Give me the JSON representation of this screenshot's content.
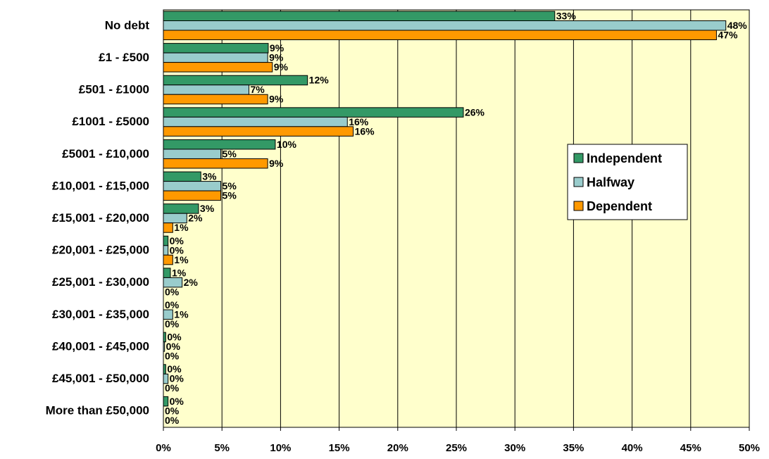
{
  "chart_data": {
    "type": "hbar",
    "categories": [
      "No debt",
      "£1 - £500",
      "£501 - £1000",
      "£1001 - £5000",
      "£5001 - £10,000",
      "£10,001 - £15,000",
      "£15,001 - £20,000",
      "£20,001 - £25,000",
      "£25,001 - £30,000",
      "£30,001 - £35,000",
      "£40,001 - £45,000",
      "£45,001 - £50,000",
      "More than £50,000"
    ],
    "series": [
      {
        "name": "Independent",
        "color": "#339966",
        "values": [
          33.4,
          8.95,
          12.3,
          25.6,
          9.55,
          3.2,
          3.0,
          0.4,
          0.6,
          0,
          0.2,
          0.2,
          0.4
        ],
        "value_labels": [
          "33%",
          "9%",
          "12%",
          "26%",
          "10%",
          "3%",
          "3%",
          "0%",
          "1%",
          "0%",
          "0%",
          "0%",
          "0%"
        ]
      },
      {
        "name": "Halfway",
        "color": "#99CCCC",
        "values": [
          48.0,
          8.9,
          7.3,
          15.7,
          4.9,
          4.9,
          2.0,
          0.4,
          1.6,
          0.8,
          0.1,
          0.4,
          0
        ],
        "value_labels": [
          "48%",
          "9%",
          "7%",
          "16%",
          "5%",
          "5%",
          "2%",
          "0%",
          "2%",
          "1%",
          "0%",
          "0%",
          "0%"
        ]
      },
      {
        "name": "Dependent",
        "color": "#FF9900",
        "values": [
          47.2,
          9.3,
          8.9,
          16.2,
          8.9,
          4.9,
          0.8,
          0.8,
          0,
          0,
          0,
          0,
          0
        ],
        "value_labels": [
          "47%",
          "9%",
          "9%",
          "16%",
          "9%",
          "5%",
          "1%",
          "1%",
          "0%",
          "0%",
          "0%",
          "0%",
          "0%"
        ]
      }
    ],
    "xlim": [
      0,
      50
    ],
    "xticks": [
      {
        "value": 0,
        "label": "0%"
      },
      {
        "value": 5,
        "label": "5%"
      },
      {
        "value": 10,
        "label": "10%"
      },
      {
        "value": 15,
        "label": "15%"
      },
      {
        "value": 20,
        "label": "20%"
      },
      {
        "value": 25,
        "label": "25%"
      },
      {
        "value": 30,
        "label": "30%"
      },
      {
        "value": 35,
        "label": "35%"
      },
      {
        "value": 40,
        "label": "40%"
      },
      {
        "value": 45,
        "label": "45%"
      },
      {
        "value": 50,
        "label": "50%"
      }
    ],
    "grid": true,
    "legend": "right",
    "background": "#FFFFCC"
  }
}
